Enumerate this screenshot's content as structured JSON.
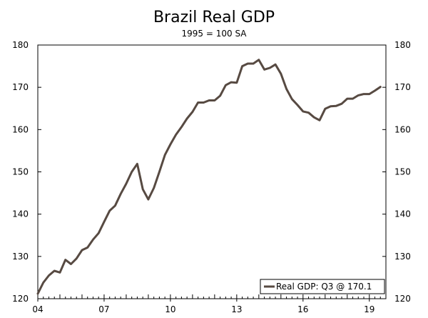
{
  "chart_data": {
    "type": "line",
    "title": "Brazil Real GDP",
    "subtitle": "1995 = 100 SA",
    "xlabel": "",
    "ylabel": "",
    "x_tick_labels": [
      "04",
      "07",
      "10",
      "13",
      "16",
      "19"
    ],
    "x_tick_positions": [
      2004,
      2007,
      2010,
      2013,
      2016,
      2019
    ],
    "xlim": [
      2004,
      2019.75
    ],
    "ylim": [
      120,
      180
    ],
    "y_ticks": [
      120,
      130,
      140,
      150,
      160,
      170,
      180
    ],
    "grid": false,
    "legend_position": "bottom-right",
    "line_color": "#574a42",
    "series": [
      {
        "name": "Real GDP: Q3 @ 170.1",
        "x": [
          2004.0,
          2004.25,
          2004.5,
          2004.75,
          2005.0,
          2005.25,
          2005.5,
          2005.75,
          2006.0,
          2006.25,
          2006.5,
          2006.75,
          2007.0,
          2007.25,
          2007.5,
          2007.75,
          2008.0,
          2008.25,
          2008.5,
          2008.75,
          2009.0,
          2009.25,
          2009.5,
          2009.75,
          2010.0,
          2010.25,
          2010.5,
          2010.75,
          2011.0,
          2011.25,
          2011.5,
          2011.75,
          2012.0,
          2012.25,
          2012.5,
          2012.75,
          2013.0,
          2013.25,
          2013.5,
          2013.75,
          2014.0,
          2014.25,
          2014.5,
          2014.75,
          2015.0,
          2015.25,
          2015.5,
          2015.75,
          2016.0,
          2016.25,
          2016.5,
          2016.75,
          2017.0,
          2017.25,
          2017.5,
          2017.75,
          2018.0,
          2018.25,
          2018.5,
          2018.75,
          2019.0,
          2019.25,
          2019.5
        ],
        "values": [
          121.2,
          123.8,
          125.5,
          126.6,
          126.2,
          129.2,
          128.2,
          129.5,
          131.5,
          132.1,
          134.0,
          135.5,
          138.2,
          140.8,
          142.0,
          144.8,
          147.2,
          150.0,
          151.9,
          145.9,
          143.5,
          146.2,
          150.0,
          154.0,
          156.5,
          158.8,
          160.6,
          162.6,
          164.2,
          166.4,
          166.4,
          166.9,
          166.9,
          168.0,
          170.5,
          171.2,
          171.1,
          175.0,
          175.6,
          175.6,
          176.5,
          174.2,
          174.6,
          175.4,
          173.2,
          169.6,
          167.2,
          165.8,
          164.3,
          164.0,
          162.9,
          162.2,
          164.9,
          165.5,
          165.6,
          166.1,
          167.3,
          167.3,
          168.1,
          168.4,
          168.4,
          169.2,
          170.1
        ]
      }
    ]
  }
}
